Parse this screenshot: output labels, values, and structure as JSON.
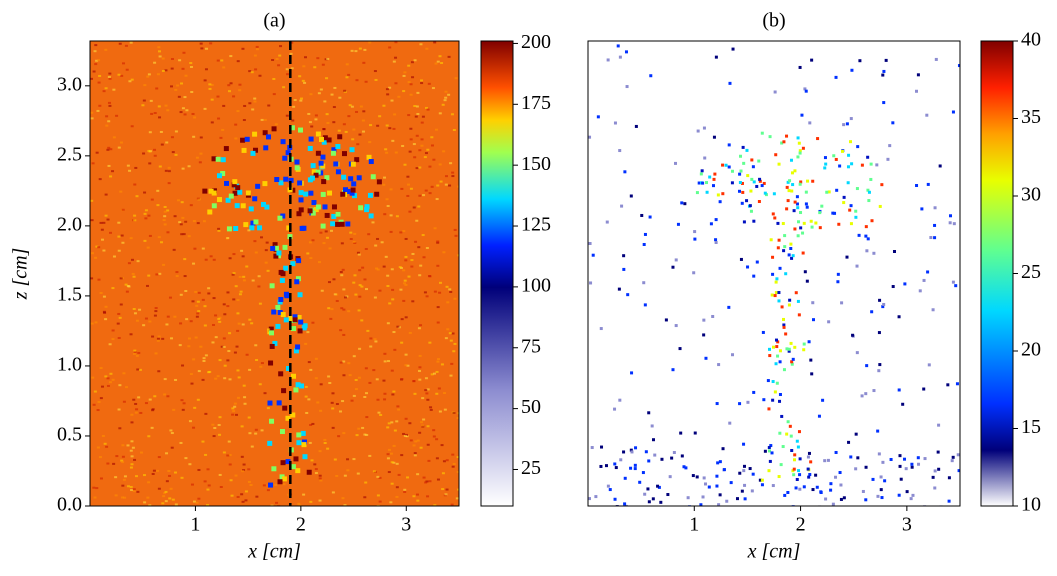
{
  "chart_data": [
    {
      "type": "heatmap",
      "title": "(a)",
      "xlabel": "x [cm]",
      "ylabel": "z [cm]",
      "xlim": [
        0,
        3.5
      ],
      "xticks": [
        1,
        2,
        3
      ],
      "ylim": [
        0,
        3.32
      ],
      "yticks": [
        {
          "value": 0,
          "label": "0.0"
        },
        0.5,
        {
          "value": 1,
          "label": "1.0"
        },
        1.5,
        {
          "value": 2,
          "label": "2.0"
        },
        2.5,
        {
          "value": 3,
          "label": "3.0"
        }
      ],
      "clim": [
        10,
        201
      ],
      "cticks": [
        25,
        50,
        75,
        100,
        125,
        150,
        175,
        200
      ],
      "vline": 1.9
    },
    {
      "type": "heatmap",
      "title": "(b)",
      "xlabel": "x [cm]",
      "xlim": [
        0,
        3.5
      ],
      "xticks": [
        1,
        2,
        3
      ],
      "ylim": [
        0,
        3.32
      ],
      "clim": [
        10,
        40
      ],
      "cticks": [
        10,
        15,
        20,
        25,
        30,
        35,
        40
      ]
    }
  ]
}
